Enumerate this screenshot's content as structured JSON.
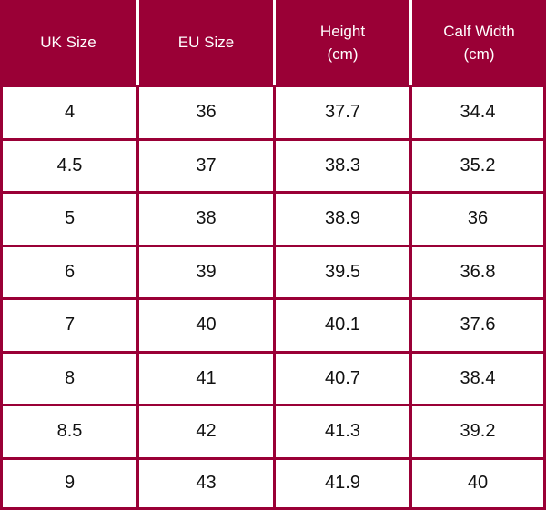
{
  "table": {
    "headers": [
      [
        "UK Size"
      ],
      [
        "EU Size"
      ],
      [
        "Height",
        "(cm)"
      ],
      [
        "Calf Width",
        "(cm)"
      ]
    ],
    "rows": [
      [
        "4",
        "36",
        "37.7",
        "34.4"
      ],
      [
        "4.5",
        "37",
        "38.3",
        "35.2"
      ],
      [
        "5",
        "38",
        "38.9",
        "36"
      ],
      [
        "6",
        "39",
        "39.5",
        "36.8"
      ],
      [
        "7",
        "40",
        "40.1",
        "37.6"
      ],
      [
        "8",
        "41",
        "40.7",
        "38.4"
      ],
      [
        "8.5",
        "42",
        "41.3",
        "39.2"
      ],
      [
        "9",
        "43",
        "41.9",
        "40"
      ]
    ]
  },
  "colors": {
    "header_background": "#9a0036",
    "header_text": "#ffffff",
    "cell_background": "#ffffff",
    "cell_text": "#111111"
  }
}
